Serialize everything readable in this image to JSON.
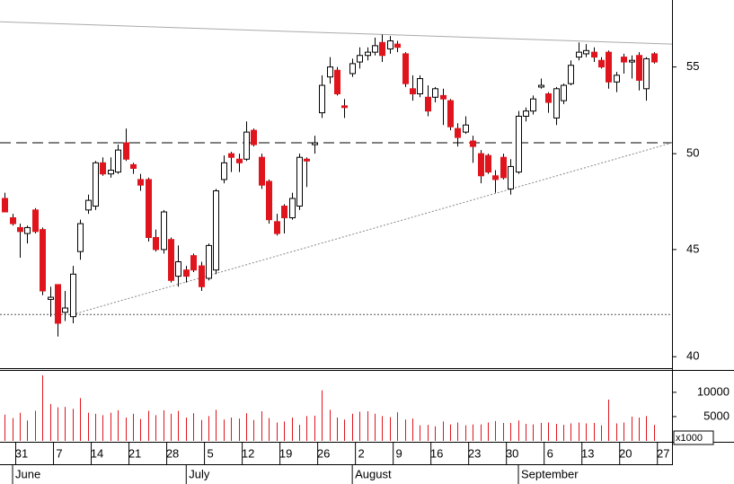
{
  "chart_data": {
    "type": "candlestick",
    "log_scale": true,
    "xlim": [
      -0.62,
      88.4
    ],
    "ylim": [
      39.5,
      59.2
    ],
    "yticks": [
      40,
      45,
      50,
      55
    ],
    "up_color": "#ffffff",
    "down_color": "#e0141c",
    "open": [
      47.6,
      46.6,
      46.1,
      45.8,
      47.0,
      46.0,
      42.6,
      43.3,
      42.0,
      41.8,
      44.9,
      47.0,
      47.2,
      49.5,
      48.9,
      49.0,
      50.6,
      49.4,
      48.6,
      48.6,
      45.6,
      45.0,
      45.5,
      43.7,
      44.0,
      44.7,
      44.2,
      43.6,
      44.0,
      48.6,
      50.0,
      49.7,
      49.7,
      51.3,
      49.8,
      48.5,
      46.4,
      47.2,
      46.6,
      47.2,
      49.7,
      50.5,
      52.3,
      54.4,
      54.8,
      52.7,
      54.6,
      55.3,
      55.7,
      55.9,
      56.5,
      56.1,
      56.4,
      55.8,
      53.7,
      53.4,
      53.2,
      53.2,
      53.3,
      53.0,
      51.4,
      51.2,
      50.7,
      50.0,
      49.9,
      48.8,
      49.8,
      48.1,
      49.0,
      52.1,
      52.4,
      53.8,
      53.4,
      52.0,
      53.0,
      54.0,
      55.6,
      55.8,
      55.9,
      55.4,
      55.9,
      54.1,
      55.6,
      55.3,
      55.7,
      53.7,
      55.8
    ],
    "high": [
      47.9,
      46.8,
      46.3,
      46.2,
      47.1,
      46.1,
      43.2,
      43.3,
      43.0,
      44.2,
      46.5,
      47.8,
      49.6,
      49.8,
      49.8,
      50.5,
      51.4,
      49.5,
      48.9,
      48.7,
      46.0,
      47.0,
      45.6,
      45.2,
      44.2,
      44.8,
      44.4,
      45.3,
      48.1,
      49.9,
      50.1,
      50.0,
      51.8,
      51.4,
      50.0,
      48.6,
      46.8,
      47.3,
      47.9,
      50.0,
      49.8,
      51.0,
      54.5,
      55.6,
      55.0,
      53.1,
      55.5,
      56.2,
      56.2,
      56.8,
      57.0,
      56.9,
      56.6,
      55.9,
      54.5,
      54.5,
      53.9,
      53.8,
      53.7,
      53.1,
      51.7,
      52.1,
      51.0,
      50.2,
      50.0,
      49.1,
      50.0,
      49.7,
      52.4,
      52.6,
      53.3,
      54.3,
      53.5,
      53.8,
      54.0,
      55.4,
      56.5,
      56.4,
      56.2,
      55.6,
      56.0,
      54.7,
      55.8,
      55.7,
      55.9,
      55.6,
      55.9
    ],
    "low": [
      46.9,
      46.2,
      44.6,
      45.3,
      45.8,
      42.8,
      41.8,
      40.9,
      41.6,
      41.5,
      44.5,
      46.8,
      47.0,
      48.8,
      48.7,
      48.9,
      49.6,
      48.9,
      48.0,
      45.4,
      44.9,
      44.8,
      43.4,
      43.2,
      43.4,
      43.9,
      43.0,
      43.5,
      43.8,
      48.4,
      49.0,
      49.0,
      49.6,
      50.4,
      48.1,
      46.3,
      45.7,
      45.8,
      46.5,
      47.0,
      48.2,
      50.0,
      52.0,
      54.0,
      53.3,
      52.0,
      54.4,
      54.9,
      55.4,
      55.7,
      55.3,
      55.8,
      55.9,
      53.8,
      53.0,
      53.2,
      52.1,
      52.9,
      51.6,
      51.3,
      50.4,
      51.1,
      49.5,
      48.4,
      48.9,
      47.9,
      48.6,
      47.8,
      48.9,
      51.8,
      52.2,
      53.7,
      52.3,
      51.6,
      52.8,
      53.9,
      55.4,
      55.6,
      55.3,
      54.9,
      53.7,
      53.5,
      54.6,
      54.3,
      53.6,
      53.0,
      55.2
    ],
    "close": [
      46.9,
      46.3,
      45.9,
      46.1,
      45.9,
      43.0,
      42.7,
      41.5,
      42.2,
      43.8,
      46.3,
      47.5,
      49.5,
      48.9,
      49.1,
      50.2,
      49.7,
      49.2,
      48.3,
      45.6,
      45.0,
      46.9,
      43.5,
      44.4,
      43.7,
      44.0,
      43.2,
      45.2,
      48.0,
      49.5,
      49.8,
      49.5,
      51.2,
      50.5,
      48.3,
      46.5,
      45.8,
      46.6,
      47.6,
      49.8,
      49.6,
      50.6,
      53.9,
      55.0,
      53.4,
      52.6,
      55.2,
      55.7,
      55.9,
      56.3,
      55.7,
      56.6,
      56.2,
      54.0,
      53.4,
      54.3,
      52.4,
      53.7,
      53.1,
      51.5,
      50.9,
      51.6,
      50.4,
      48.8,
      49.0,
      48.6,
      48.7,
      49.3,
      52.1,
      52.4,
      53.1,
      53.9,
      52.9,
      53.7,
      53.9,
      55.1,
      55.9,
      56.0,
      55.6,
      55.0,
      54.1,
      54.5,
      55.3,
      55.4,
      54.2,
      55.5,
      55.3
    ],
    "xticks": [
      {
        "value": 2,
        "label": "31"
      },
      {
        "value": 7,
        "label": "7"
      },
      {
        "value": 12,
        "label": "14"
      },
      {
        "value": 17,
        "label": "21"
      },
      {
        "value": 22,
        "label": "28"
      },
      {
        "value": 27,
        "label": "5"
      },
      {
        "value": 32,
        "label": "12"
      },
      {
        "value": 37,
        "label": "19"
      },
      {
        "value": 42,
        "label": "26"
      },
      {
        "value": 47,
        "label": "2"
      },
      {
        "value": 52,
        "label": "9"
      },
      {
        "value": 57,
        "label": "16"
      },
      {
        "value": 62,
        "label": "23"
      },
      {
        "value": 67,
        "label": "30"
      },
      {
        "value": 72,
        "label": "6"
      },
      {
        "value": 77,
        "label": "13"
      },
      {
        "value": 82,
        "label": "20"
      },
      {
        "value": 87,
        "label": "27"
      }
    ],
    "months": [
      {
        "value": 2,
        "label": "June"
      },
      {
        "value": 25,
        "label": "July"
      },
      {
        "value": 47,
        "label": "August"
      },
      {
        "value": 69,
        "label": "September"
      }
    ],
    "hlines": [
      {
        "y": 50.6,
        "style": "dashed",
        "color": "#000000"
      },
      {
        "y": 41.9,
        "style": "dotted",
        "color": "#555555"
      }
    ],
    "trendlines": [
      {
        "points": [
          [
            -0.62,
            57.8
          ],
          [
            88.4,
            56.4
          ]
        ],
        "style": "solid",
        "color": "#aaaaaa"
      },
      {
        "points": [
          [
            9,
            41.9
          ],
          [
            88.4,
            50.6
          ]
        ],
        "style": "dotted",
        "color": "#888888"
      }
    ],
    "volume": {
      "color": "#e0141c",
      "ylim": [
        0,
        14600
      ],
      "yticks": [
        5000,
        10000
      ],
      "unit_label": "x1000",
      "values": [
        5400,
        4700,
        5800,
        4200,
        6200,
        13500,
        7600,
        6900,
        7000,
        6600,
        8800,
        5800,
        5600,
        5300,
        5800,
        6300,
        4800,
        5600,
        4500,
        6200,
        5300,
        6300,
        5600,
        6200,
        4800,
        5700,
        4300,
        5100,
        6400,
        4400,
        4800,
        4600,
        5700,
        4300,
        6100,
        4700,
        3800,
        4000,
        4800,
        3300,
        5100,
        5200,
        10400,
        6400,
        4800,
        4400,
        5600,
        6000,
        6100,
        5600,
        5100,
        4900,
        5900,
        4400,
        4600,
        3200,
        3300,
        3000,
        4000,
        3400,
        3800,
        3200,
        3400,
        3400,
        3800,
        4100,
        3700,
        3700,
        4200,
        3500,
        3400,
        3700,
        3800,
        3500,
        3300,
        3600,
        3800,
        3600,
        3700,
        3200,
        8500,
        3600,
        3800,
        5000,
        4800,
        5100,
        3300
      ]
    }
  }
}
